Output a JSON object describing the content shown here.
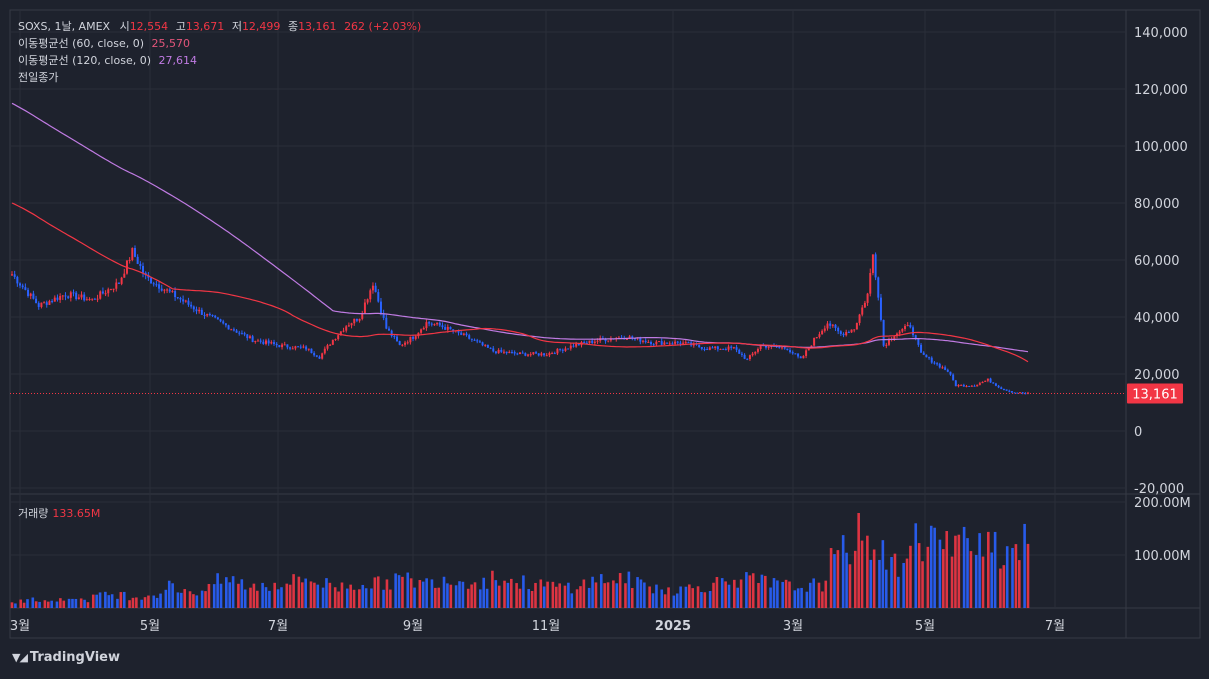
{
  "header": {
    "symbol_line": "SOXS, 1날, AMEX",
    "open_label": "시",
    "open_value": "12,554",
    "high_label": "고",
    "high_value": "13,671",
    "low_label": "저",
    "low_value": "12,499",
    "close_label": "종",
    "close_value": "13,161",
    "change": "262 (+2.03%)"
  },
  "indicators": [
    {
      "label": "이동평균선 (60, close, 0)",
      "value": "25,570",
      "color": "#f23645"
    },
    {
      "label": "이동평균선 (120, close, 0)",
      "value": "27,614",
      "color": "#c07be3"
    },
    {
      "label": "전일종가",
      "value": ""
    }
  ],
  "volume_legend": {
    "label": "거래량",
    "value": "133.65M"
  },
  "last_price_tag": "13,161",
  "brand": "TradingView",
  "colors": {
    "background": "#1e222d",
    "up": "#f23645",
    "down": "#2962ff",
    "ma60": "#f23645",
    "ma120": "#c07be3",
    "grid": "#2a2e39"
  },
  "chart_data": {
    "type": "candlestick",
    "price_axis": {
      "ticks": [
        "140,000",
        "120,000",
        "100,000",
        "80,000",
        "60,000",
        "40,000",
        "20,000",
        "0",
        "-20,000"
      ],
      "range": [
        -20000,
        145000
      ]
    },
    "volume_axis": {
      "ticks": [
        "200.00M",
        "100.00M"
      ],
      "range": [
        0,
        200000000
      ]
    },
    "x_ticks": [
      "3월",
      "5월",
      "7월",
      "9월",
      "11월",
      "2025",
      "3월",
      "5월",
      "7월"
    ],
    "last_close": 13161,
    "approx_close_path": {
      "points": [
        [
          0,
          55000
        ],
        [
          10,
          44000
        ],
        [
          20,
          48000
        ],
        [
          30,
          46000
        ],
        [
          40,
          52000
        ],
        [
          45,
          63000
        ],
        [
          50,
          54000
        ],
        [
          60,
          48000
        ],
        [
          70,
          42000
        ],
        [
          80,
          37000
        ],
        [
          90,
          32000
        ],
        [
          100,
          30000
        ],
        [
          110,
          29000
        ],
        [
          115,
          26000
        ],
        [
          120,
          32000
        ],
        [
          125,
          37000
        ],
        [
          130,
          40000
        ],
        [
          135,
          52000
        ],
        [
          140,
          36000
        ],
        [
          145,
          30000
        ],
        [
          150,
          33000
        ],
        [
          155,
          38000
        ],
        [
          160,
          37000
        ],
        [
          170,
          33000
        ],
        [
          180,
          28000
        ],
        [
          190,
          27000
        ],
        [
          200,
          27000
        ],
        [
          210,
          30000
        ],
        [
          220,
          32000
        ],
        [
          230,
          33000
        ],
        [
          240,
          31000
        ],
        [
          250,
          31000
        ],
        [
          260,
          29000
        ],
        [
          270,
          29000
        ],
        [
          275,
          25000
        ],
        [
          280,
          30000
        ],
        [
          290,
          29000
        ],
        [
          295,
          25000
        ],
        [
          300,
          32000
        ],
        [
          305,
          38000
        ],
        [
          310,
          34000
        ],
        [
          315,
          36000
        ],
        [
          320,
          48000
        ],
        [
          322,
          62000
        ],
        [
          324,
          48000
        ],
        [
          326,
          30000
        ],
        [
          330,
          34000
        ],
        [
          336,
          37000
        ],
        [
          340,
          27000
        ],
        [
          345,
          24000
        ],
        [
          350,
          21000
        ],
        [
          353,
          16000
        ],
        [
          360,
          16000
        ],
        [
          365,
          18000
        ],
        [
          370,
          15000
        ],
        [
          375,
          13500
        ],
        [
          380,
          13161
        ]
      ],
      "note_units": "session index, price"
    },
    "approx_volume_millions": [
      12,
      15,
      18,
      20,
      16,
      22,
      18,
      25,
      30,
      28,
      24,
      26,
      30,
      45,
      40,
      35,
      38,
      55,
      60,
      50,
      45,
      48,
      52,
      55,
      62,
      58,
      50,
      45,
      48,
      54,
      50,
      56,
      60,
      58,
      52,
      62,
      64,
      56,
      60,
      55,
      66,
      58,
      52,
      50,
      48,
      44,
      46,
      50,
      55,
      60,
      62,
      58,
      50,
      44,
      40,
      38,
      42,
      46,
      52,
      60,
      62,
      58,
      54,
      50,
      46,
      44,
      48,
      52,
      95,
      130,
      150,
      140,
      110,
      90,
      120,
      140,
      150,
      130,
      120,
      150,
      160,
      140,
      120,
      140,
      133
    ]
  }
}
